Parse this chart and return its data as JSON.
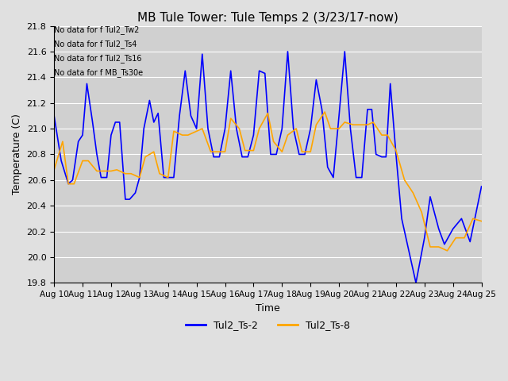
{
  "title": "MB Tule Tower: Tule Temps 2 (3/23/17-now)",
  "xlabel": "Time",
  "ylabel": "Temperature (C)",
  "ylim": [
    19.8,
    21.8
  ],
  "yticks": [
    19.8,
    20.0,
    20.2,
    20.4,
    20.6,
    20.8,
    21.0,
    21.2,
    21.4,
    21.6,
    21.8
  ],
  "x_tick_labels": [
    "Aug 10",
    "Aug 11",
    "Aug 12",
    "Aug 13",
    "Aug 14",
    "Aug 15",
    "Aug 16",
    "Aug 17",
    "Aug 18",
    "Aug 19",
    "Aug 20",
    "Aug 21",
    "Aug 22",
    "Aug 23",
    "Aug 24",
    "Aug 25"
  ],
  "legend_labels": [
    "Tul2_Ts-2",
    "Tul2_Ts-8"
  ],
  "line_colors": [
    "#0000FF",
    "#FFA500"
  ],
  "no_data_lines": [
    "No data for f Tul2_Tw2",
    "No data for f Tul2_Ts4",
    "No data for f Tul2_Ts16",
    "No data for f MB_Ts30e"
  ],
  "background_color": "#e0e0e0",
  "plot_bg_color": "#d0d0d0",
  "fig_width": 6.4,
  "fig_height": 4.8,
  "dpi": 100,
  "blue_x": [
    0.0,
    0.25,
    0.5,
    0.65,
    0.85,
    1.0,
    1.15,
    1.35,
    1.5,
    1.65,
    1.85,
    2.0,
    2.15,
    2.3,
    2.5,
    2.65,
    2.85,
    3.0,
    3.15,
    3.35,
    3.5,
    3.65,
    3.85,
    4.0,
    4.2,
    4.4,
    4.6,
    4.8,
    5.0,
    5.2,
    5.4,
    5.6,
    5.8,
    6.0,
    6.2,
    6.4,
    6.6,
    6.8,
    7.0,
    7.2,
    7.4,
    7.6,
    7.8,
    8.0,
    8.2,
    8.4,
    8.6,
    8.8,
    9.0,
    9.2,
    9.4,
    9.6,
    9.8,
    10.0,
    10.2,
    10.4,
    10.6,
    10.8,
    11.0,
    11.15,
    11.3,
    11.5,
    11.65,
    11.8,
    12.0,
    12.2,
    12.5,
    12.7,
    13.0,
    13.2,
    13.5,
    13.7,
    14.0,
    14.3,
    14.6,
    15.0
  ],
  "blue_y": [
    21.1,
    20.75,
    20.57,
    20.6,
    20.9,
    20.95,
    21.35,
    21.05,
    20.8,
    20.62,
    20.62,
    20.95,
    21.05,
    21.05,
    20.45,
    20.45,
    20.5,
    20.62,
    21.0,
    21.22,
    21.05,
    21.12,
    20.62,
    20.62,
    20.62,
    21.1,
    21.45,
    21.1,
    21.0,
    21.58,
    21.0,
    20.78,
    20.78,
    21.0,
    21.45,
    21.0,
    20.78,
    20.78,
    20.95,
    21.45,
    21.43,
    20.8,
    20.8,
    21.0,
    21.6,
    21.0,
    20.8,
    20.8,
    21.0,
    21.38,
    21.15,
    20.7,
    20.62,
    21.1,
    21.6,
    21.0,
    20.62,
    20.62,
    21.15,
    21.15,
    20.8,
    20.78,
    20.78,
    21.35,
    20.8,
    20.3,
    20.0,
    19.8,
    20.15,
    20.47,
    20.22,
    20.1,
    20.22,
    20.3,
    20.12,
    20.55
  ],
  "orange_x": [
    0.0,
    0.3,
    0.5,
    0.7,
    1.0,
    1.2,
    1.5,
    1.7,
    2.0,
    2.2,
    2.5,
    2.7,
    3.0,
    3.2,
    3.5,
    3.7,
    4.0,
    4.2,
    4.5,
    4.7,
    5.0,
    5.2,
    5.5,
    5.7,
    6.0,
    6.2,
    6.5,
    6.7,
    7.0,
    7.2,
    7.5,
    7.7,
    8.0,
    8.2,
    8.5,
    8.7,
    9.0,
    9.2,
    9.5,
    9.7,
    10.0,
    10.2,
    10.5,
    10.7,
    11.0,
    11.2,
    11.5,
    11.7,
    12.0,
    12.3,
    12.6,
    12.9,
    13.2,
    13.5,
    13.8,
    14.1,
    14.4,
    14.7,
    15.0
  ],
  "orange_y": [
    20.68,
    20.9,
    20.57,
    20.57,
    20.75,
    20.75,
    20.67,
    20.67,
    20.67,
    20.68,
    20.65,
    20.65,
    20.62,
    20.78,
    20.82,
    20.65,
    20.62,
    20.98,
    20.95,
    20.95,
    20.98,
    21.0,
    20.82,
    20.82,
    20.82,
    21.08,
    21.0,
    20.83,
    20.83,
    21.0,
    21.12,
    20.9,
    20.82,
    20.95,
    21.0,
    20.82,
    20.82,
    21.03,
    21.13,
    21.0,
    21.0,
    21.05,
    21.03,
    21.03,
    21.03,
    21.05,
    20.95,
    20.95,
    20.83,
    20.6,
    20.5,
    20.35,
    20.08,
    20.08,
    20.05,
    20.15,
    20.15,
    20.3,
    20.28
  ]
}
